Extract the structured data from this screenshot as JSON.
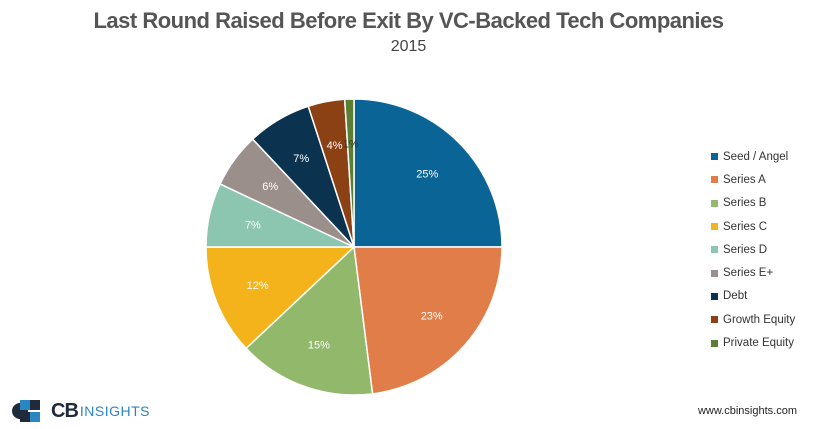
{
  "chart_data": {
    "type": "pie",
    "title": "Last Round Raised Before Exit By VC-Backed Tech Companies",
    "subtitle": "2015",
    "categories": [
      "Seed / Angel",
      "Series A",
      "Series B",
      "Series C",
      "Series D",
      "Series E+",
      "Debt",
      "Growth Equity",
      "Private Equity"
    ],
    "values": [
      25,
      23,
      15,
      12,
      7,
      6,
      7,
      4,
      1
    ],
    "labels": [
      "25%",
      "23%",
      "15%",
      "12%",
      "7%",
      "6%",
      "7%",
      "4%",
      "1%"
    ],
    "colors": [
      "#0a6496",
      "#e07d48",
      "#92b86c",
      "#f4b31a",
      "#8cc6b0",
      "#9b8f8c",
      "#0b3350",
      "#8b4114",
      "#5a7f32"
    ],
    "label_colors": [
      "#ffffff",
      "#ffffff",
      "#ffffff",
      "#ffffff",
      "#ffffff",
      "#ffffff",
      "#ffffff",
      "#ffffff",
      "#333333"
    ],
    "legend_position": "right"
  },
  "branding": {
    "logo_cb": "CB",
    "logo_insights": "INSIGHTS",
    "url": "www.cbinsights.com"
  }
}
